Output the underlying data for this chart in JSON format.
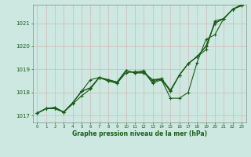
{
  "xlabel": "Graphe pression niveau de la mer (hPa)",
  "background_color": "#cce8e0",
  "grid_color": "#d4b8b8",
  "line_color": "#1a5c1a",
  "spine_color": "#888888",
  "xlim": [
    -0.5,
    23.5
  ],
  "ylim": [
    1016.7,
    1021.8
  ],
  "yticks": [
    1017,
    1018,
    1019,
    1020,
    1021
  ],
  "xticks": [
    0,
    1,
    2,
    3,
    4,
    5,
    6,
    7,
    8,
    9,
    10,
    11,
    12,
    13,
    14,
    15,
    16,
    17,
    18,
    19,
    20,
    21,
    22,
    23
  ],
  "series": [
    [
      1017.1,
      1017.3,
      1017.3,
      1017.15,
      1017.5,
      1017.85,
      1018.15,
      1018.65,
      1018.5,
      1018.4,
      1018.85,
      1018.9,
      1018.9,
      1018.4,
      1018.55,
      1017.75,
      1017.75,
      1018.0,
      1019.3,
      1020.3,
      1020.5,
      1021.2,
      1021.6,
      1021.75
    ],
    [
      1017.1,
      1017.3,
      1017.3,
      1017.15,
      1017.55,
      1018.05,
      1018.55,
      1018.65,
      1018.5,
      1018.4,
      1018.95,
      1018.85,
      1018.95,
      1018.45,
      1018.6,
      1018.1,
      1018.75,
      1019.25,
      1019.55,
      1019.85,
      1021.1,
      1021.2,
      1021.6,
      1021.8
    ],
    [
      1017.1,
      1017.3,
      1017.35,
      1017.15,
      1017.55,
      1018.05,
      1018.2,
      1018.65,
      1018.55,
      1018.45,
      1018.95,
      1018.85,
      1018.85,
      1018.55,
      1018.6,
      1018.05,
      1018.75,
      1019.25,
      1019.55,
      1020.0,
      1021.0,
      1021.2,
      1021.6,
      1021.8
    ],
    [
      1017.1,
      1017.3,
      1017.35,
      1017.15,
      1017.55,
      1018.05,
      1018.2,
      1018.65,
      1018.55,
      1018.45,
      1018.95,
      1018.85,
      1018.85,
      1018.55,
      1018.55,
      1018.05,
      1018.75,
      1019.25,
      1019.55,
      1020.0,
      1021.0,
      1021.2,
      1021.6,
      1021.8
    ]
  ]
}
